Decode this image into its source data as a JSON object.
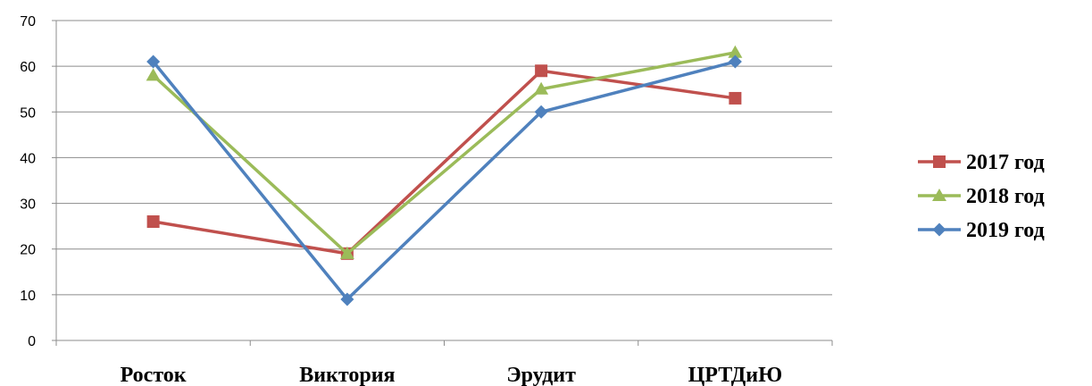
{
  "chart_data": {
    "type": "line",
    "categories": [
      "Росток",
      "Виктория",
      "Эрудит",
      "ЦРТДиЮ"
    ],
    "ylim": [
      0,
      70
    ],
    "yticks": [
      0,
      10,
      20,
      30,
      40,
      50,
      60,
      70
    ],
    "grid": true,
    "legend_position": "right",
    "title": "",
    "xlabel": "",
    "ylabel": "",
    "series": [
      {
        "name": "2017 год",
        "values": [
          26,
          19,
          59,
          53
        ],
        "color": "#c0504d",
        "marker": "square"
      },
      {
        "name": "2018 год",
        "values": [
          58,
          19,
          55,
          63
        ],
        "color": "#9bbb59",
        "marker": "triangle"
      },
      {
        "name": "2019 год",
        "values": [
          61,
          9,
          50,
          61
        ],
        "color": "#4f81bd",
        "marker": "diamond"
      }
    ]
  }
}
